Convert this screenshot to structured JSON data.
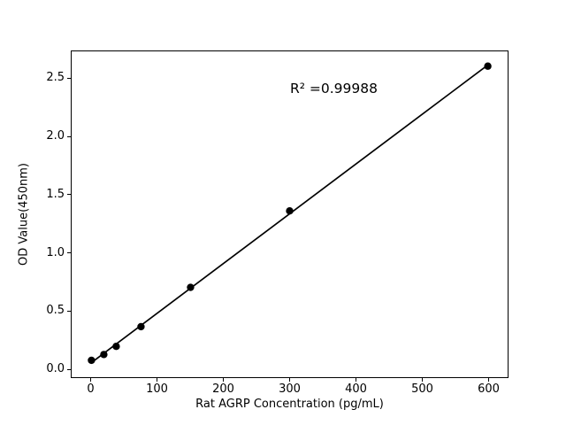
{
  "chart_data": {
    "type": "scatter",
    "title": "",
    "xlabel": "Rat AGRP Concentration (pg/mL)",
    "ylabel": "OD Value(450nm)",
    "annotation": "R² =0.99988",
    "r_squared": 0.99988,
    "x": [
      0,
      18.75,
      37.5,
      75,
      150,
      300,
      600
    ],
    "y": [
      0.07,
      0.12,
      0.19,
      0.36,
      0.7,
      1.36,
      2.61
    ],
    "fit_line": {
      "x": [
        0,
        600
      ],
      "y": [
        0.05,
        2.62
      ]
    },
    "xlim": [
      -30,
      630
    ],
    "ylim": [
      -0.076,
      2.738
    ],
    "xticks": [
      "0",
      "100",
      "200",
      "300",
      "400",
      "500",
      "600"
    ],
    "yticks": [
      "0.0",
      "0.5",
      "1.0",
      "1.5",
      "2.0",
      "2.5"
    ],
    "grid": false,
    "legend_position": "none",
    "marker_color": "#000000",
    "line_color": "#000000",
    "background_color": "#ffffff",
    "marker_radius": 4.2,
    "line_width": 1.7
  }
}
